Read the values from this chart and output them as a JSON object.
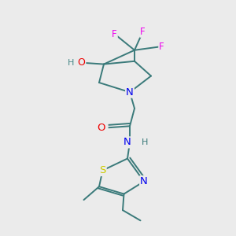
{
  "background_color": "#ebebeb",
  "atom_colors": {
    "C": "#3a7a7a",
    "N": "#0000ee",
    "O": "#ee0000",
    "S": "#cccc00",
    "F": "#ee00ee",
    "HO": "#4a8a8a"
  },
  "figsize": [
    3.0,
    3.0
  ],
  "dpi": 100,
  "lw": 1.4,
  "fs": 8.5
}
